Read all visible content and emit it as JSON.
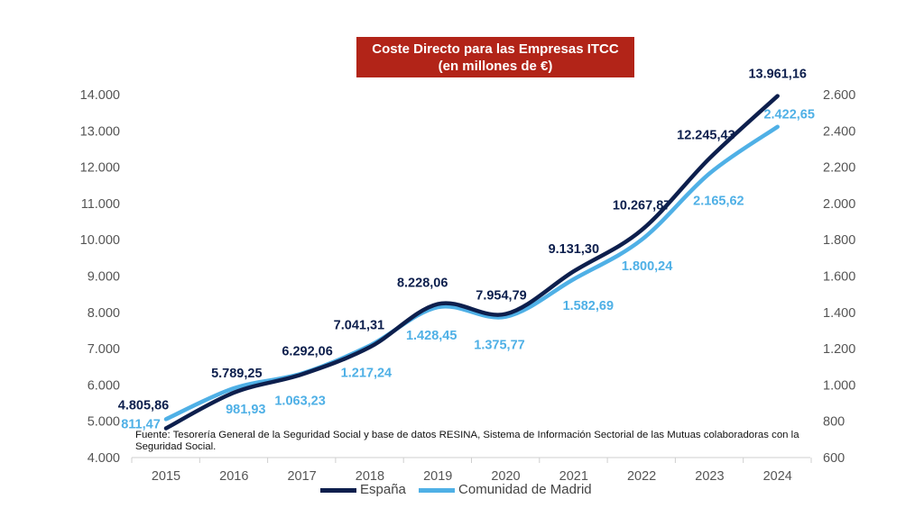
{
  "title": {
    "line1": "Coste Directo para las Empresas ITCC",
    "line2": "(en millones de €)"
  },
  "source": "Fuente: Tesorería General de la Seguridad Social y base de datos RESINA, Sistema de Información Sectorial de las Mutuas colaboradoras con la Seguridad Social.",
  "colors": {
    "espana": "#0d1f4d",
    "madrid": "#4fb0e6",
    "title_bg": "#b22418"
  },
  "chart_data": {
    "type": "line",
    "title": "Coste Directo para las Empresas ITCC",
    "subtitle": "(en millones de €)",
    "categories": [
      "2015",
      "2016",
      "2017",
      "2018",
      "2019",
      "2020",
      "2021",
      "2022",
      "2023",
      "2024"
    ],
    "y_left": {
      "min": 4000,
      "max": 14000,
      "ticks": [
        "4.000",
        "5.000",
        "6.000",
        "7.000",
        "8.000",
        "9.000",
        "10.000",
        "11.000",
        "12.000",
        "13.000",
        "14.000"
      ]
    },
    "y_right": {
      "min": 600,
      "max": 2600,
      "ticks": [
        "600",
        "800",
        "1.000",
        "1.200",
        "1.400",
        "1.600",
        "1.800",
        "2.000",
        "2.200",
        "2.400",
        "2.600"
      ]
    },
    "series": [
      {
        "name": "España",
        "axis": "left",
        "values": [
          4805.86,
          5789.25,
          6292.06,
          7041.31,
          8228.06,
          7954.79,
          9131.3,
          10267.87,
          12245.43,
          13961.16
        ],
        "labels": [
          "4.805,86",
          "5.789,25",
          "6.292,06",
          "7.041,31",
          "8.228,06",
          "7.954,79",
          "9.131,30",
          "10.267,87",
          "12.245,43",
          "13.961,16"
        ]
      },
      {
        "name": "Comunidad de Madrid",
        "axis": "right",
        "values": [
          811.47,
          981.93,
          1063.23,
          1217.24,
          1428.45,
          1375.77,
          1582.69,
          1800.24,
          2165.62,
          2422.65
        ],
        "labels": [
          "811,47",
          "981,93",
          "1.063,23",
          "1.217,24",
          "1.428,45",
          "1.375,77",
          "1.582,69",
          "1.800,24",
          "2.165,62",
          "2.422,65"
        ]
      }
    ],
    "legend": "bottom",
    "grid": false
  }
}
